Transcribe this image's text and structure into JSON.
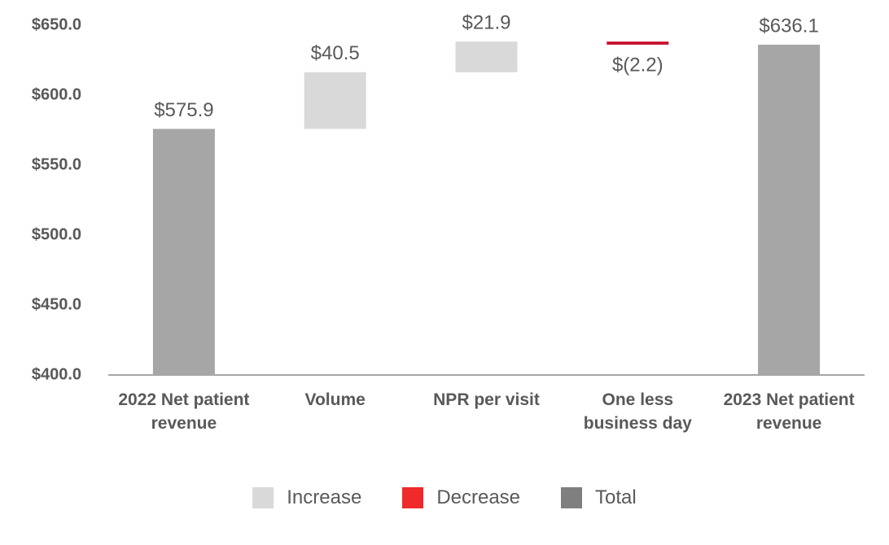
{
  "chart_data": {
    "type": "waterfall",
    "categories": [
      "2022 Net patient revenue",
      "Volume",
      "NPR per visit",
      "One less business day",
      "2023 Net patient revenue"
    ],
    "values": [
      575.9,
      40.5,
      21.9,
      -2.2,
      636.1
    ],
    "value_labels": [
      "$575.9",
      "$40.5",
      "$21.9",
      "$(2.2)",
      "$636.1"
    ],
    "totals": [
      true,
      false,
      false,
      false,
      true
    ],
    "colors": [
      "#a6a6a6",
      "#d9d9d9",
      "#d9d9d9",
      "#c8102e",
      "#a6a6a6"
    ],
    "legend": [
      {
        "name": "Increase",
        "color": "#d9d9d9"
      },
      {
        "name": "Decrease",
        "color": "#ee2a2a"
      },
      {
        "name": "Total",
        "color": "#7f7f7f"
      }
    ],
    "ylim": [
      400,
      650
    ],
    "yticks": [
      {
        "value": 400,
        "label": "$400.0"
      },
      {
        "value": 450,
        "label": "$450.0"
      },
      {
        "value": 500,
        "label": "$500.0"
      },
      {
        "value": 550,
        "label": "$550.0"
      },
      {
        "value": 600,
        "label": "$600.0"
      },
      {
        "value": 650,
        "label": "$650.0"
      }
    ]
  }
}
